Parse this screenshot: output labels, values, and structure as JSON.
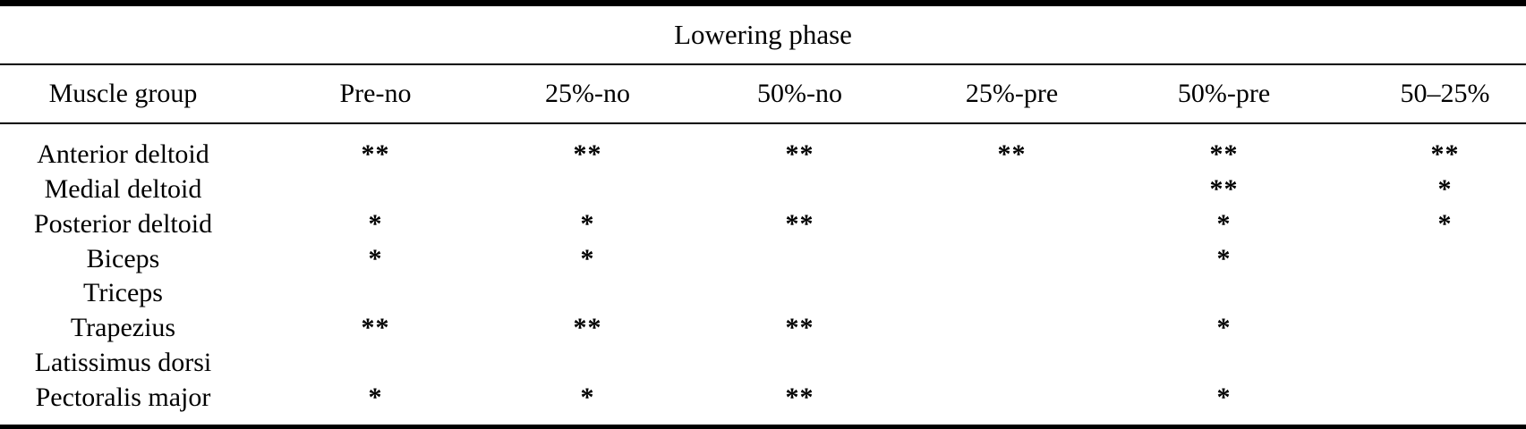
{
  "table": {
    "title": "Lowering phase",
    "header": {
      "muscle_group": "Muscle group",
      "conditions": [
        "Pre-no",
        "25%-no",
        "50%-no",
        "25%-pre",
        "50%-pre",
        "50–25%"
      ]
    },
    "rows": [
      {
        "muscle": "Anterior deltoid",
        "values": [
          "**",
          "**",
          "**",
          "**",
          "**",
          "**"
        ]
      },
      {
        "muscle": "Medial deltoid",
        "values": [
          "",
          "",
          "",
          "",
          "**",
          "*"
        ]
      },
      {
        "muscle": "Posterior deltoid",
        "values": [
          "*",
          "*",
          "**",
          "",
          "*",
          "*"
        ]
      },
      {
        "muscle": "Biceps",
        "values": [
          "*",
          "*",
          "",
          "",
          "*",
          ""
        ]
      },
      {
        "muscle": "Triceps",
        "values": [
          "",
          "",
          "",
          "",
          "",
          ""
        ]
      },
      {
        "muscle": "Trapezius",
        "values": [
          "**",
          "**",
          "**",
          "",
          "*",
          ""
        ]
      },
      {
        "muscle": "Latissimus dorsi",
        "values": [
          "",
          "",
          "",
          "",
          "",
          ""
        ]
      },
      {
        "muscle": "Pectoralis major",
        "values": [
          "*",
          "*",
          "**",
          "",
          "*",
          ""
        ]
      }
    ]
  },
  "colors": {
    "text": "#000000",
    "background": "#ffffff",
    "rule": "#000000"
  }
}
